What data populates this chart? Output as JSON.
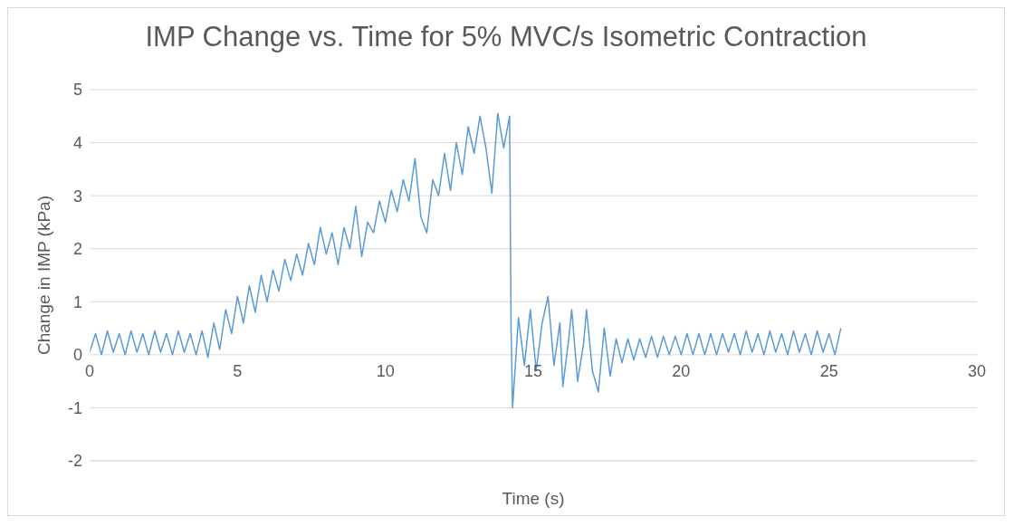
{
  "chart_data": {
    "type": "line",
    "title": "IMP Change vs. Time for 5% MVC/s Isometric Contraction",
    "xlabel": "Time (s)",
    "ylabel": "Change in IMP (kPa)",
    "xlim": [
      0,
      30
    ],
    "xticks": [
      0,
      5,
      10,
      15,
      20,
      25,
      30
    ],
    "ylim": [
      -2,
      5
    ],
    "yticks": [
      -2,
      -1,
      0,
      1,
      2,
      3,
      4,
      5
    ],
    "grid": "y",
    "legend": false,
    "marker": "none",
    "line_style": "solid",
    "series": [
      {
        "color": "#5b9bd5",
        "x": [
          0,
          0.2,
          0.4,
          0.6,
          0.8,
          1.0,
          1.2,
          1.4,
          1.6,
          1.8,
          2.0,
          2.2,
          2.4,
          2.6,
          2.8,
          3.0,
          3.2,
          3.4,
          3.6,
          3.8,
          4.0,
          4.2,
          4.4,
          4.6,
          4.8,
          5.0,
          5.2,
          5.4,
          5.6,
          5.8,
          6.0,
          6.2,
          6.4,
          6.6,
          6.8,
          7.0,
          7.2,
          7.4,
          7.6,
          7.8,
          8.0,
          8.2,
          8.4,
          8.6,
          8.8,
          9.0,
          9.2,
          9.4,
          9.6,
          9.8,
          10.0,
          10.2,
          10.4,
          10.6,
          10.8,
          11.0,
          11.2,
          11.4,
          11.6,
          11.8,
          12.0,
          12.2,
          12.4,
          12.6,
          12.8,
          13.0,
          13.2,
          13.4,
          13.6,
          13.8,
          14.0,
          14.2,
          14.25,
          14.3,
          14.5,
          14.7,
          14.9,
          15.1,
          15.3,
          15.5,
          15.7,
          15.9,
          16.0,
          16.2,
          16.3,
          16.5,
          16.7,
          16.8,
          17.0,
          17.2,
          17.4,
          17.6,
          17.8,
          18.0,
          18.2,
          18.4,
          18.6,
          18.8,
          19.0,
          19.2,
          19.4,
          19.6,
          19.8,
          20.0,
          20.2,
          20.4,
          20.6,
          20.8,
          21.0,
          21.2,
          21.4,
          21.6,
          21.8,
          22.0,
          22.2,
          22.4,
          22.6,
          22.8,
          23.0,
          23.2,
          23.4,
          23.6,
          23.8,
          24.0,
          24.2,
          24.4,
          24.6,
          24.8,
          25.0,
          25.2,
          25.4
        ],
        "values": [
          0.05,
          0.4,
          0.0,
          0.45,
          0.05,
          0.4,
          0.0,
          0.45,
          0.05,
          0.4,
          0.0,
          0.45,
          0.05,
          0.4,
          0.0,
          0.45,
          0.05,
          0.4,
          0.0,
          0.45,
          -0.05,
          0.6,
          0.1,
          0.85,
          0.4,
          1.1,
          0.6,
          1.3,
          0.8,
          1.5,
          1.0,
          1.6,
          1.2,
          1.8,
          1.4,
          1.9,
          1.5,
          2.1,
          1.7,
          2.4,
          1.9,
          2.3,
          1.7,
          2.4,
          2.0,
          2.8,
          1.85,
          2.5,
          2.3,
          2.9,
          2.5,
          3.1,
          2.7,
          3.3,
          2.9,
          3.7,
          2.6,
          2.3,
          3.3,
          3.0,
          3.8,
          3.1,
          4.0,
          3.4,
          4.3,
          3.8,
          4.5,
          3.9,
          3.05,
          4.55,
          3.9,
          4.5,
          0.5,
          -1.0,
          0.7,
          -0.2,
          0.85,
          -0.3,
          0.6,
          1.1,
          -0.2,
          0.6,
          -0.6,
          0.3,
          0.85,
          -0.5,
          0.2,
          0.85,
          -0.3,
          -0.7,
          0.5,
          -0.4,
          0.3,
          -0.15,
          0.3,
          -0.1,
          0.3,
          -0.05,
          0.35,
          -0.05,
          0.35,
          0.0,
          0.35,
          0.0,
          0.4,
          0.0,
          0.4,
          0.0,
          0.4,
          0.0,
          0.4,
          0.05,
          0.4,
          0.0,
          0.45,
          0.05,
          0.4,
          0.0,
          0.45,
          0.05,
          0.4,
          0.0,
          0.45,
          0.05,
          0.4,
          0.0,
          0.45,
          0.05,
          0.4,
          0.0,
          0.5
        ]
      }
    ]
  }
}
